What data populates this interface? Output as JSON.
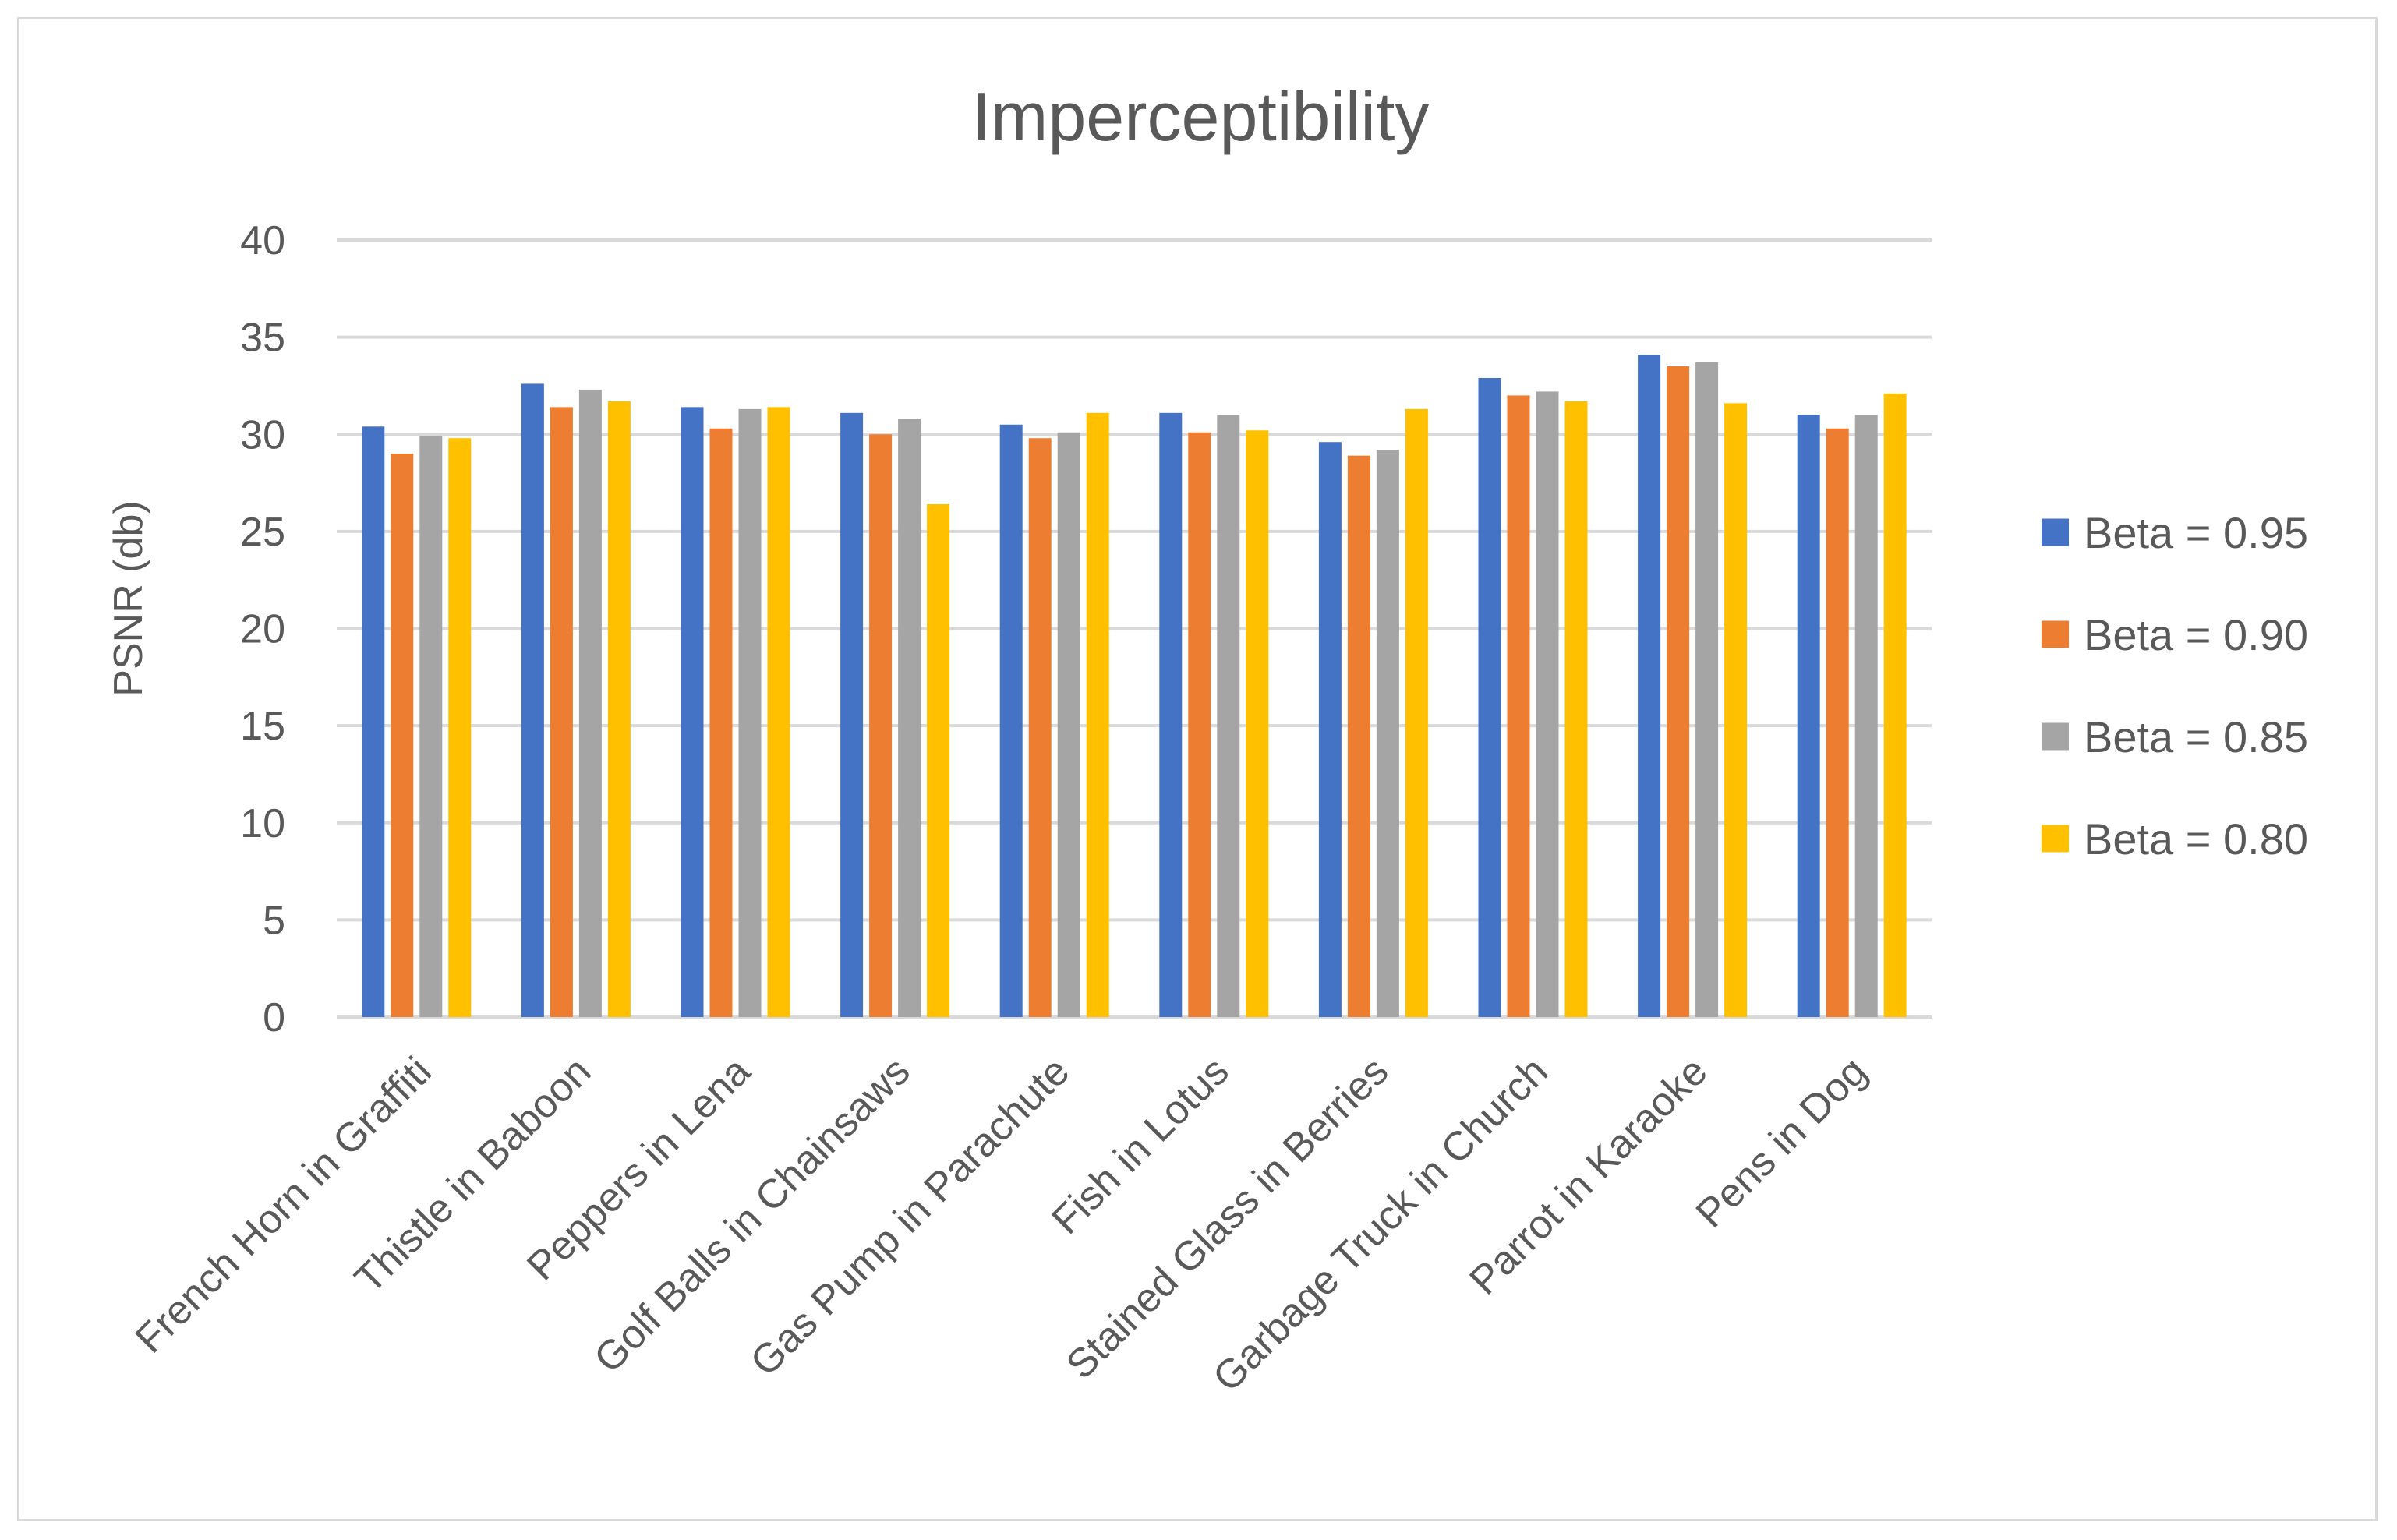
{
  "chart_data": {
    "type": "bar",
    "title": "Imperceptibility",
    "xlabel": "",
    "ylabel": "PSNR (db)",
    "ylim": [
      0,
      40
    ],
    "yticks": [
      0,
      5,
      10,
      15,
      20,
      25,
      30,
      35,
      40
    ],
    "grid": true,
    "legend_position": "right",
    "categories": [
      "French Horn in Graffiti",
      "Thistle in Baboon",
      "Peppers in Lena",
      "Golf Balls in Chainsaws",
      "Gas Pump in Parachute",
      "Fish in Lotus",
      "Stained Glass in Berries",
      "Garbage Truck in Church",
      "Parrot in Karaoke",
      "Pens in Dog"
    ],
    "series": [
      {
        "name": "Beta = 0.95",
        "color": "#4472c4",
        "values": [
          30.4,
          32.6,
          31.4,
          31.1,
          30.5,
          31.1,
          29.6,
          32.9,
          34.1,
          31.0
        ]
      },
      {
        "name": "Beta = 0.90",
        "color": "#ed7d31",
        "values": [
          29.0,
          31.4,
          30.3,
          30.0,
          29.8,
          30.1,
          28.9,
          32.0,
          33.5,
          30.3
        ]
      },
      {
        "name": "Beta = 0.85",
        "color": "#a5a5a5",
        "values": [
          29.9,
          32.3,
          31.3,
          30.8,
          30.1,
          31.0,
          29.2,
          32.2,
          33.7,
          31.0
        ]
      },
      {
        "name": "Beta = 0.80",
        "color": "#ffc000",
        "values": [
          29.8,
          31.7,
          31.4,
          26.4,
          31.1,
          30.2,
          31.3,
          31.7,
          31.6,
          32.1
        ]
      }
    ]
  }
}
